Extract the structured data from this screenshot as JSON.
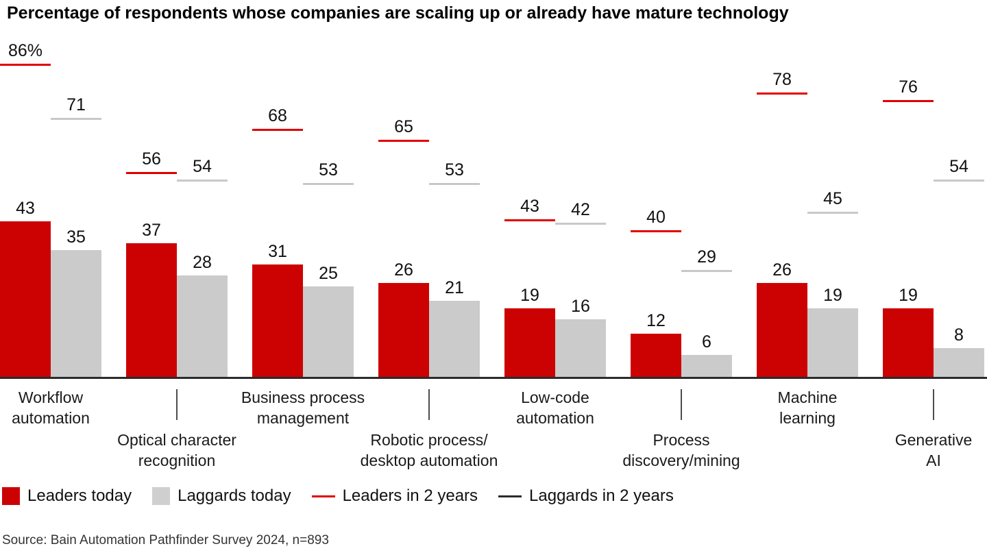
{
  "chart": {
    "title": "Percentage of respondents whose companies are scaling up or already have mature technology",
    "source": "Source: Bain Automation Pathfinder Survey 2024, n=893"
  },
  "chart_data": {
    "type": "bar",
    "subtype": "grouped-bars-with-target-lines",
    "unit": "percent",
    "title": "Percentage of respondents whose companies are scaling up or already have mature technology",
    "xlabel": "",
    "ylabel": "",
    "ylim": [
      0,
      100
    ],
    "grid": false,
    "legend_position": "bottom",
    "categories": [
      "Workflow automation",
      "Optical character recognition",
      "Business process management",
      "Robotic process/desktop automation",
      "Low-code automation",
      "Process discovery/mining",
      "Machine learning",
      "Generative AI"
    ],
    "category_label_lines": [
      [
        "Workflow",
        "automation"
      ],
      [
        "Optical character",
        "recognition"
      ],
      [
        "Business process",
        "management"
      ],
      [
        "Robotic process/",
        "desktop automation"
      ],
      [
        "Low-code",
        "automation"
      ],
      [
        "Process",
        "discovery/mining"
      ],
      [
        "Machine",
        "learning"
      ],
      [
        "Generative",
        "AI"
      ]
    ],
    "series": [
      {
        "name": "Leaders today",
        "style": "bar",
        "color": "#cc0202",
        "values": [
          43,
          37,
          31,
          26,
          19,
          12,
          26,
          19
        ]
      },
      {
        "name": "Laggards today",
        "style": "bar",
        "color": "#cbcbcb",
        "values": [
          35,
          28,
          25,
          21,
          16,
          6,
          19,
          8
        ]
      },
      {
        "name": "Leaders in 2 years",
        "style": "line",
        "color": "#e00000",
        "values": [
          86,
          56,
          68,
          65,
          43,
          40,
          78,
          76
        ],
        "labels": [
          "86%",
          "56",
          "68",
          "65",
          "43",
          "40",
          "78",
          "76"
        ]
      },
      {
        "name": "Laggards in 2 years",
        "style": "line",
        "color": "#c8c8c8",
        "values": [
          71,
          54,
          53,
          53,
          42,
          29,
          45,
          54
        ]
      }
    ]
  },
  "legend": {
    "items": [
      {
        "label": "Leaders today",
        "swatch": "square",
        "color": "#cc0202"
      },
      {
        "label": "Laggards today",
        "swatch": "square",
        "color": "#cfcfcf"
      },
      {
        "label": "Leaders in 2 years",
        "swatch": "line",
        "color": "#e00000"
      },
      {
        "label": "Laggards in 2 years",
        "swatch": "line",
        "color": "#2b2b2b"
      }
    ]
  }
}
